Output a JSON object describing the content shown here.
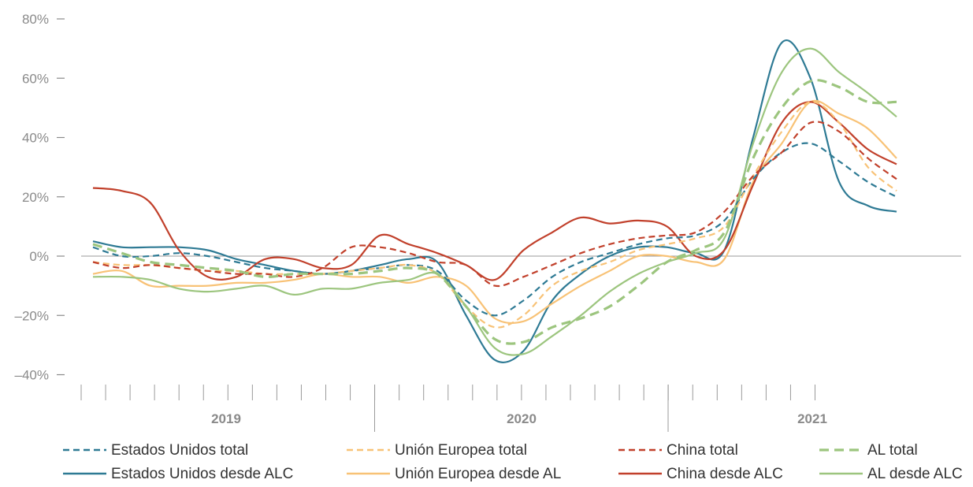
{
  "chart_data": {
    "type": "line",
    "title": "",
    "xlabel": "",
    "ylabel": "",
    "ylim": [
      -40,
      80
    ],
    "yticks": [
      -40,
      -20,
      0,
      20,
      40,
      60,
      80
    ],
    "ytick_labels": [
      "–40%",
      "–20%",
      "0%",
      "20%",
      "40%",
      "60%",
      "80%"
    ],
    "ytick_dash": "–",
    "x_period": "Jan 2019 – Jul 2021 (monthly)",
    "x_year_labels": [
      "2019",
      "2020",
      "2021"
    ],
    "x_monthly_ticks": 31,
    "zero_line": true,
    "legend_position": "bottom",
    "series": [
      {
        "name": "Estados Unidos total",
        "color": "#2e7a94",
        "style": "dashed",
        "values": [
          3,
          0,
          0,
          1,
          0,
          -2,
          -4,
          -5,
          -6,
          -5,
          -4,
          -3,
          -5,
          -15,
          -20,
          -15,
          -7,
          -2,
          1,
          4,
          6,
          7,
          12,
          26,
          35,
          38,
          32,
          25,
          20
        ]
      },
      {
        "name": "Unión Europea total",
        "color": "#f8c276",
        "style": "dashed",
        "values": [
          -2,
          -3,
          -3,
          -4,
          -5,
          -5,
          -6,
          -6,
          -6,
          -5,
          -4,
          -3,
          -6,
          -17,
          -24,
          -20,
          -10,
          -5,
          -2,
          2,
          4,
          6,
          10,
          27,
          42,
          52,
          45,
          30,
          22
        ]
      },
      {
        "name": "China total",
        "color": "#c1402b",
        "style": "dashed",
        "values": [
          -2,
          -4,
          -3,
          -4,
          -5,
          -6,
          -6,
          -7,
          -4,
          3,
          3,
          1,
          -2,
          -3,
          -10,
          -7,
          -3,
          1,
          4,
          6,
          7,
          8,
          15,
          27,
          35,
          45,
          42,
          33,
          26
        ]
      },
      {
        "name": "AL total",
        "color": "#9cc57e",
        "style": "dashed",
        "values": [
          4,
          1,
          -2,
          -3,
          -4,
          -5,
          -7,
          -6,
          -6,
          -6,
          -5,
          -4,
          -6,
          -17,
          -28,
          -29,
          -24,
          -21,
          -17,
          -10,
          -2,
          2,
          8,
          33,
          50,
          59,
          57,
          52,
          52
        ]
      },
      {
        "name": "Estados Unidos desde ALC",
        "color": "#2e7a94",
        "style": "solid",
        "values": [
          5,
          3,
          3,
          3,
          2,
          -1,
          -3,
          -5,
          -6,
          -5,
          -3,
          -1,
          -2,
          -20,
          -35,
          -32,
          -15,
          -6,
          0,
          3,
          3,
          1,
          2,
          40,
          72,
          60,
          25,
          17,
          15
        ]
      },
      {
        "name": "Unión Europea desde AL",
        "color": "#f8c276",
        "style": "solid",
        "values": [
          -6,
          -5,
          -10,
          -10,
          -10,
          -9,
          -9,
          -8,
          -6,
          -7,
          -7,
          -9,
          -7,
          -10,
          -21,
          -22,
          -16,
          -10,
          -5,
          0,
          0,
          -2,
          -1,
          25,
          38,
          52,
          48,
          43,
          33
        ]
      },
      {
        "name": "China desde ALC",
        "color": "#c1402b",
        "style": "solid",
        "values": [
          23,
          22,
          18,
          2,
          -7,
          -7,
          -1,
          -1,
          -4,
          -3,
          7,
          4,
          1,
          -3,
          -8,
          2,
          8,
          13,
          11,
          12,
          10,
          0,
          2,
          24,
          45,
          52,
          45,
          36,
          31
        ]
      },
      {
        "name": "AL desde ALC",
        "color": "#9cc57e",
        "style": "solid",
        "values": [
          -7,
          -7,
          -8,
          -11,
          -12,
          -11,
          -10,
          -13,
          -11,
          -11,
          -9,
          -8,
          -6,
          -17,
          -31,
          -33,
          -27,
          -20,
          -12,
          -6,
          -2,
          1,
          6,
          38,
          62,
          70,
          62,
          55,
          47
        ]
      }
    ]
  }
}
